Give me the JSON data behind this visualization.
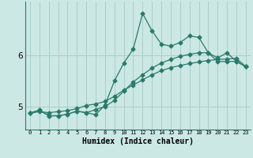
{
  "xlabel": "Humidex (Indice chaleur)",
  "background_color": "#cce8e4",
  "grid_color": "#aacfcc",
  "line_color": "#2a7a6a",
  "x_ticks": [
    0,
    1,
    2,
    3,
    4,
    5,
    6,
    7,
    8,
    9,
    10,
    11,
    12,
    13,
    14,
    15,
    16,
    17,
    18,
    19,
    20,
    21,
    22,
    23
  ],
  "y_ticks": [
    5,
    6
  ],
  "ylim": [
    4.55,
    7.05
  ],
  "xlim": [
    -0.5,
    23.5
  ],
  "series": [
    [
      4.87,
      4.93,
      4.82,
      4.82,
      4.85,
      4.91,
      4.88,
      4.84,
      5.03,
      5.5,
      5.85,
      6.12,
      6.82,
      6.48,
      6.22,
      6.18,
      6.25,
      6.38,
      6.35,
      6.05,
      5.95,
      6.05,
      5.88,
      5.78
    ],
    [
      4.87,
      4.93,
      4.82,
      4.82,
      4.85,
      4.91,
      4.88,
      4.94,
      5.0,
      5.12,
      5.3,
      5.48,
      5.62,
      5.75,
      5.85,
      5.92,
      5.98,
      6.02,
      6.05,
      6.05,
      5.88,
      5.88,
      5.88,
      5.78
    ],
    [
      4.87,
      4.9,
      4.88,
      4.9,
      4.92,
      4.96,
      5.02,
      5.05,
      5.1,
      5.2,
      5.32,
      5.42,
      5.52,
      5.62,
      5.7,
      5.76,
      5.8,
      5.84,
      5.87,
      5.9,
      5.92,
      5.93,
      5.94,
      5.78
    ]
  ],
  "marker": "D",
  "markersize": 2.5,
  "linewidth": 0.9
}
